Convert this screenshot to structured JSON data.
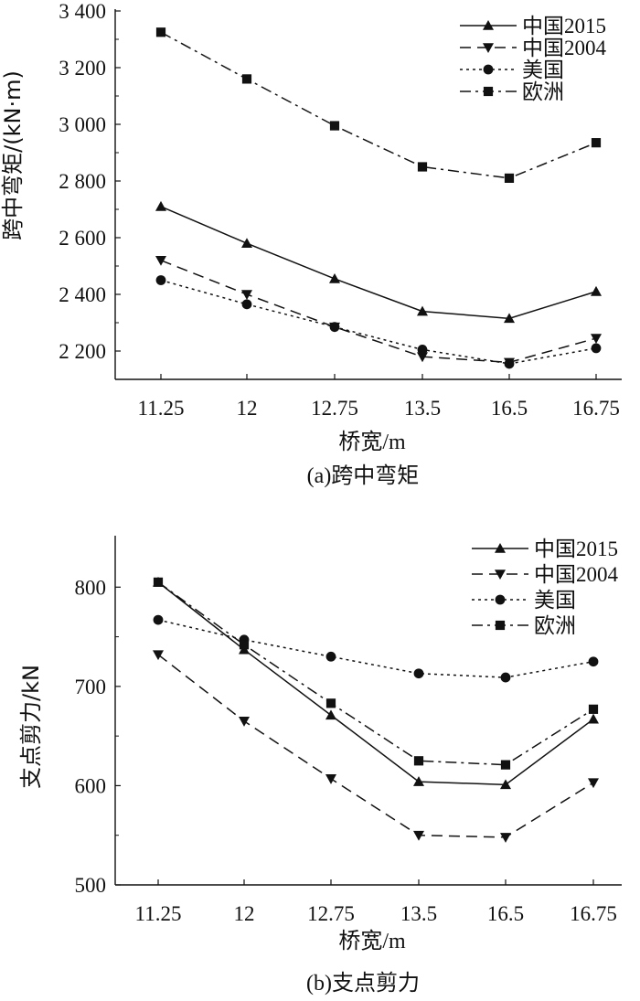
{
  "chart_data": [
    {
      "type": "line",
      "caption": "(a)跨中弯矩",
      "xlabel": "桥宽/m",
      "ylabel": "跨中弯矩/(kN·m)",
      "categories": [
        "11.25",
        "12",
        "12.75",
        "13.5",
        "16.5",
        "16.75"
      ],
      "ylim": [
        2100,
        3400
      ],
      "yticks": [
        2200,
        2400,
        2600,
        2800,
        3000,
        3200,
        3400
      ],
      "ytick_labels": [
        "2 200",
        "2 400",
        "2 600",
        "2 800",
        "3 000",
        "3 200",
        "3 400"
      ],
      "legend_position": "top-right",
      "series": [
        {
          "name": "中国2015",
          "marker": "triangle-up",
          "line": "solid",
          "values": [
            2710,
            2580,
            2455,
            2340,
            2315,
            2410
          ]
        },
        {
          "name": "中国2004",
          "marker": "triangle-down",
          "line": "dashed",
          "values": [
            2520,
            2400,
            2285,
            2180,
            2160,
            2245
          ]
        },
        {
          "name": "美国",
          "marker": "circle",
          "line": "dotted",
          "values": [
            2450,
            2365,
            2285,
            2205,
            2155,
            2210
          ]
        },
        {
          "name": "欧洲",
          "marker": "square",
          "line": "dashdot",
          "values": [
            3325,
            3160,
            2995,
            2850,
            2810,
            2935
          ]
        }
      ]
    },
    {
      "type": "line",
      "caption": "(b)支点剪力",
      "xlabel": "桥宽/m",
      "ylabel": "支点剪力/kN",
      "categories": [
        "11.25",
        "12",
        "12.75",
        "13.5",
        "16.5",
        "16.75"
      ],
      "ylim": [
        500,
        850
      ],
      "yticks": [
        500,
        600,
        700,
        800
      ],
      "ytick_labels": [
        "500",
        "600",
        "700",
        "800"
      ],
      "legend_position": "top-right",
      "series": [
        {
          "name": "中国2015",
          "marker": "triangle-up",
          "line": "solid",
          "values": [
            805,
            737,
            671,
            604,
            601,
            667
          ]
        },
        {
          "name": "中国2004",
          "marker": "triangle-down",
          "line": "dashed",
          "values": [
            732,
            665,
            607,
            550,
            548,
            603
          ]
        },
        {
          "name": "美国",
          "marker": "circle",
          "line": "dotted",
          "values": [
            767,
            747,
            730,
            713,
            709,
            725
          ]
        },
        {
          "name": "欧洲",
          "marker": "square",
          "line": "dashdot",
          "values": [
            805,
            742,
            683,
            625,
            621,
            677
          ]
        }
      ]
    }
  ]
}
